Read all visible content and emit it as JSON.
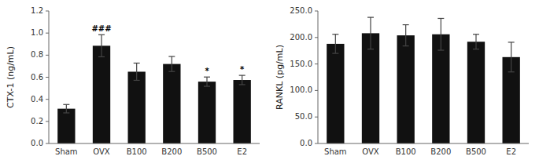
{
  "chart_data": [
    {
      "type": "bar",
      "categories": [
        "Sham",
        "OVX",
        "B100",
        "B200",
        "B500",
        "E2"
      ],
      "values": [
        0.315,
        0.885,
        0.65,
        0.72,
        0.56,
        0.575
      ],
      "errors": [
        0.038,
        0.1,
        0.078,
        0.068,
        0.042,
        0.042
      ],
      "annotations": [
        null,
        "###",
        null,
        null,
        "*",
        "*"
      ],
      "ylabel": "CTX-1 (ng/mL)",
      "ylim": [
        0.0,
        1.2
      ],
      "yticks": [
        {
          "value": 0.0,
          "label": "0.0"
        },
        0.2,
        0.4,
        0.6,
        0.8,
        {
          "value": 1.0,
          "label": "1.0"
        },
        1.2
      ],
      "color": "#111111",
      "grid": false
    },
    {
      "type": "bar",
      "categories": [
        "Sham",
        "OVX",
        "B100",
        "B200",
        "B500",
        "E2"
      ],
      "values": [
        188.0,
        208.0,
        204.0,
        206.0,
        192.0,
        163.0
      ],
      "errors": [
        18.0,
        30.0,
        20.0,
        30.0,
        14.0,
        28.0
      ],
      "ylabel": "RANKL (pg/mL)",
      "ylim": [
        0.0,
        250.0
      ],
      "yticks": [
        {
          "value": 0.0,
          "label": "0.0"
        },
        {
          "value": 50.0,
          "label": "50.0"
        },
        {
          "value": 100.0,
          "label": "100.0"
        },
        {
          "value": 150.0,
          "label": "150.0"
        },
        {
          "value": 200.0,
          "label": "200.0"
        },
        {
          "value": 250.0,
          "label": "250.0"
        }
      ],
      "color": "#111111",
      "grid": false
    }
  ]
}
